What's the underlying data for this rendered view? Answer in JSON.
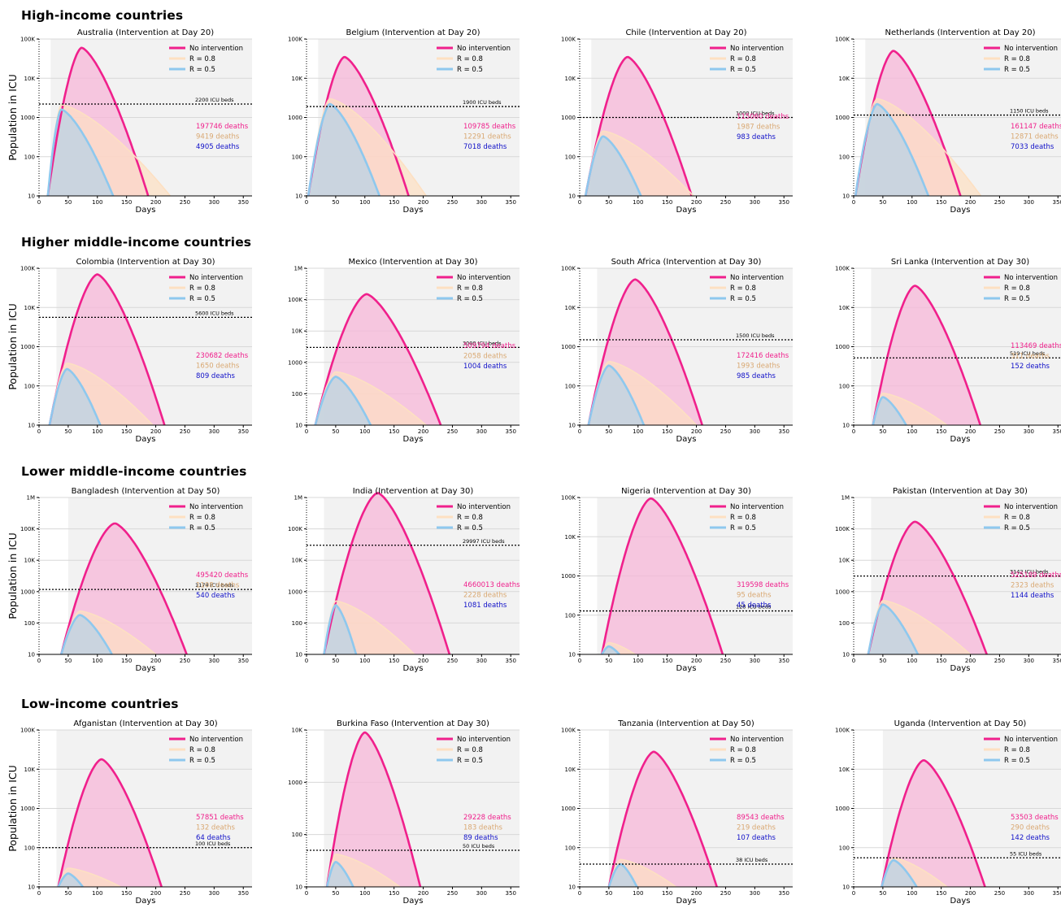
{
  "sections": [
    {
      "title": "High-income countries"
    },
    {
      "title": "Higher middle-income countries"
    },
    {
      "title": "Lower middle-income countries"
    },
    {
      "title": "Low-income countries"
    }
  ],
  "y_axis_label": "Population in ICU",
  "x_axis_label": "Days",
  "legend": {
    "no_intervention": "No intervention",
    "r08": "R = 0.8",
    "r05": "R = 0.5"
  },
  "colors": {
    "no_intervention": "#f0208c",
    "r08": "#fde0c2",
    "r05": "#8ec8ee",
    "deaths_08": "#d9a872",
    "deaths_05": "#1010c8",
    "shade": "#f2f2f2"
  },
  "chart_data": [
    {
      "type": "area",
      "title": "Australia (Intervention at Day 20)",
      "country": "Australia",
      "intervention_day": 20,
      "icu_beds_label": "2200 ICU beds",
      "icu_beds": 2200,
      "xlim": [
        0,
        365
      ],
      "ylim": [
        10,
        100000
      ],
      "yscale": "log",
      "y_ticks": [
        "10",
        "100",
        "1000",
        "10K",
        "100K"
      ],
      "x_ticks": [
        "0",
        "50",
        "100",
        "150",
        "200",
        "250",
        "300",
        "350"
      ],
      "deaths": [
        "197746 deaths",
        "9419 deaths",
        "4905 deaths"
      ],
      "series": [
        {
          "name": "No intervention",
          "start": 15,
          "peak_day": 73,
          "peak": 60000,
          "end": 187
        },
        {
          "name": "R = 0.8",
          "start": 15,
          "peak_day": 38,
          "peak": 2100,
          "end": 225
        },
        {
          "name": "R = 0.5",
          "start": 15,
          "peak_day": 38,
          "peak": 1600,
          "end": 127
        }
      ]
    },
    {
      "type": "area",
      "title": "Belgium (Intervention at Day 20)",
      "country": "Belgium",
      "intervention_day": 20,
      "icu_beds_label": "1900 ICU beds",
      "icu_beds": 1900,
      "xlim": [
        0,
        365
      ],
      "ylim": [
        10,
        100000
      ],
      "yscale": "log",
      "y_ticks": [
        "10",
        "100",
        "1000",
        "10K",
        "100K"
      ],
      "x_ticks": [
        "0",
        "50",
        "100",
        "150",
        "200",
        "250",
        "300",
        "350"
      ],
      "deaths": [
        "109785 deaths",
        "12291 deaths",
        "7018 deaths"
      ],
      "series": [
        {
          "name": "No intervention",
          "start": 3,
          "peak_day": 65,
          "peak": 35000,
          "end": 175
        },
        {
          "name": "R = 0.8",
          "start": 3,
          "peak_day": 40,
          "peak": 3000,
          "end": 205
        },
        {
          "name": "R = 0.5",
          "start": 3,
          "peak_day": 40,
          "peak": 2200,
          "end": 125
        }
      ]
    },
    {
      "type": "area",
      "title": "Chile (Intervention at Day 20)",
      "country": "Chile",
      "intervention_day": 20,
      "icu_beds_label": "1000 ICU beds",
      "icu_beds": 1000,
      "xlim": [
        0,
        365
      ],
      "ylim": [
        10,
        100000
      ],
      "yscale": "log",
      "y_ticks": [
        "10",
        "100",
        "1000",
        "10K",
        "100K"
      ],
      "x_ticks": [
        "0",
        "50",
        "100",
        "150",
        "200",
        "250",
        "300",
        "350"
      ],
      "deaths": [
        "115060 deaths",
        "1987 deaths",
        "983 deaths"
      ],
      "series": [
        {
          "name": "No intervention",
          "start": 10,
          "peak_day": 82,
          "peak": 35000,
          "end": 192
        },
        {
          "name": "R = 0.8",
          "start": 10,
          "peak_day": 40,
          "peak": 450,
          "end": 195
        },
        {
          "name": "R = 0.5",
          "start": 10,
          "peak_day": 40,
          "peak": 330,
          "end": 105
        }
      ]
    },
    {
      "type": "area",
      "title": "Netherlands (Intervention at Day 20)",
      "country": "Netherlands",
      "intervention_day": 20,
      "icu_beds_label": "1150 ICU beds",
      "icu_beds": 1150,
      "xlim": [
        0,
        365
      ],
      "ylim": [
        10,
        100000
      ],
      "yscale": "log",
      "y_ticks": [
        "10",
        "100",
        "1000",
        "10K",
        "100K"
      ],
      "x_ticks": [
        "0",
        "50",
        "100",
        "150",
        "200",
        "250",
        "300",
        "350"
      ],
      "deaths": [
        "161147 deaths",
        "12871 deaths",
        "7033 deaths"
      ],
      "series": [
        {
          "name": "No intervention",
          "start": 3,
          "peak_day": 68,
          "peak": 50000,
          "end": 183
        },
        {
          "name": "R = 0.8",
          "start": 3,
          "peak_day": 40,
          "peak": 3000,
          "end": 218
        },
        {
          "name": "R = 0.5",
          "start": 3,
          "peak_day": 40,
          "peak": 2200,
          "end": 128
        }
      ]
    },
    {
      "type": "area",
      "title": "Colombia (Intervention at Day 30)",
      "country": "Colombia",
      "intervention_day": 30,
      "icu_beds_label": "5600 ICU beds",
      "icu_beds": 5600,
      "xlim": [
        0,
        365
      ],
      "ylim": [
        10,
        100000
      ],
      "yscale": "log",
      "y_ticks": [
        "10",
        "100",
        "1000",
        "10K",
        "100K"
      ],
      "x_ticks": [
        "0",
        "50",
        "100",
        "150",
        "200",
        "250",
        "300",
        "350"
      ],
      "deaths": [
        "230682 deaths",
        "1650 deaths",
        "809 deaths"
      ],
      "series": [
        {
          "name": "No intervention",
          "start": 18,
          "peak_day": 100,
          "peak": 70000,
          "end": 215
        },
        {
          "name": "R = 0.8",
          "start": 18,
          "peak_day": 48,
          "peak": 380,
          "end": 195
        },
        {
          "name": "R = 0.5",
          "start": 18,
          "peak_day": 48,
          "peak": 270,
          "end": 105
        }
      ]
    },
    {
      "type": "area",
      "title": "Mexico (Intervention at Day 30)",
      "country": "Mexico",
      "intervention_day": 30,
      "icu_beds_label": "3000 ICU beds",
      "icu_beds": 3000,
      "xlim": [
        0,
        365
      ],
      "ylim": [
        10,
        1000000
      ],
      "yscale": "log",
      "y_ticks": [
        "10",
        "100",
        "1000",
        "10K",
        "100K",
        "1M"
      ],
      "x_ticks": [
        "0",
        "50",
        "100",
        "150",
        "200",
        "250",
        "300",
        "350"
      ],
      "deaths": [
        "509794 deaths",
        "2058 deaths",
        "1004 deaths"
      ],
      "series": [
        {
          "name": "No intervention",
          "start": 15,
          "peak_day": 103,
          "peak": 150000,
          "end": 230
        },
        {
          "name": "R = 0.8",
          "start": 15,
          "peak_day": 50,
          "peak": 500,
          "end": 205
        },
        {
          "name": "R = 0.5",
          "start": 15,
          "peak_day": 50,
          "peak": 350,
          "end": 110
        }
      ]
    },
    {
      "type": "area",
      "title": "South Africa (Intervention at Day 30)",
      "country": "South Africa",
      "intervention_day": 30,
      "icu_beds_label": "1500 ICU beds",
      "icu_beds": 1500,
      "xlim": [
        0,
        365
      ],
      "ylim": [
        10,
        100000
      ],
      "yscale": "log",
      "y_ticks": [
        "10",
        "100",
        "1000",
        "10K",
        "100K"
      ],
      "x_ticks": [
        "0",
        "50",
        "100",
        "150",
        "200",
        "250",
        "300",
        "350"
      ],
      "deaths": [
        "172416 deaths",
        "1993 deaths",
        "985 deaths"
      ],
      "series": [
        {
          "name": "No intervention",
          "start": 15,
          "peak_day": 95,
          "peak": 52000,
          "end": 210
        },
        {
          "name": "R = 0.8",
          "start": 15,
          "peak_day": 50,
          "peak": 420,
          "end": 200
        },
        {
          "name": "R = 0.5",
          "start": 15,
          "peak_day": 50,
          "peak": 330,
          "end": 110
        }
      ]
    },
    {
      "type": "area",
      "title": "Sri Lanka (Intervention at Day 30)",
      "country": "Sri Lanka",
      "intervention_day": 30,
      "icu_beds_label": "519 ICU beds",
      "icu_beds": 519,
      "xlim": [
        0,
        365
      ],
      "ylim": [
        10,
        100000
      ],
      "yscale": "log",
      "y_ticks": [
        "10",
        "100",
        "1000",
        "10K",
        "100K"
      ],
      "x_ticks": [
        "0",
        "50",
        "100",
        "150",
        "200",
        "250",
        "300",
        "350"
      ],
      "deaths": [
        "113469 deaths",
        "311 deaths",
        "152 deaths"
      ],
      "series": [
        {
          "name": "No intervention",
          "start": 33,
          "peak_day": 105,
          "peak": 36000,
          "end": 217
        },
        {
          "name": "R = 0.8",
          "start": 33,
          "peak_day": 50,
          "peak": 65,
          "end": 160
        },
        {
          "name": "R = 0.5",
          "start": 33,
          "peak_day": 50,
          "peak": 52,
          "end": 90
        }
      ]
    },
    {
      "type": "area",
      "title": "Bangladesh (Intervention at Day 50)",
      "country": "Bangladesh",
      "intervention_day": 50,
      "icu_beds_label": "1174 ICU beds",
      "icu_beds": 1174,
      "xlim": [
        0,
        365
      ],
      "ylim": [
        10,
        1000000
      ],
      "yscale": "log",
      "y_ticks": [
        "10",
        "100",
        "1000",
        "10K",
        "100K",
        "1M"
      ],
      "x_ticks": [
        "0",
        "50",
        "100",
        "150",
        "200",
        "250",
        "300",
        "350"
      ],
      "deaths": [
        "495420 deaths",
        "1108 deaths",
        "540 deaths"
      ],
      "series": [
        {
          "name": "No intervention",
          "start": 38,
          "peak_day": 130,
          "peak": 150000,
          "end": 253
        },
        {
          "name": "R = 0.8",
          "start": 38,
          "peak_day": 70,
          "peak": 240,
          "end": 200
        },
        {
          "name": "R = 0.5",
          "start": 38,
          "peak_day": 70,
          "peak": 180,
          "end": 125
        }
      ]
    },
    {
      "type": "area",
      "title": "India (Intervention at Day 30)",
      "country": "India",
      "intervention_day": 30,
      "icu_beds_label": "29997 ICU beds",
      "icu_beds": 29997,
      "xlim": [
        0,
        365
      ],
      "ylim": [
        10,
        1000000
      ],
      "yscale": "log",
      "y_ticks": [
        "10",
        "100",
        "1000",
        "10K",
        "100K",
        "1M"
      ],
      "x_ticks": [
        "0",
        "50",
        "100",
        "150",
        "200",
        "250",
        "300",
        "350"
      ],
      "deaths": [
        "4660013 deaths",
        "2228 deaths",
        "1081 deaths"
      ],
      "series": [
        {
          "name": "No intervention",
          "start": 30,
          "peak_day": 122,
          "peak": 1400000,
          "end": 245
        },
        {
          "name": "R = 0.8",
          "start": 30,
          "peak_day": 50,
          "peak": 500,
          "end": 185
        },
        {
          "name": "R = 0.5",
          "start": 30,
          "peak_day": 50,
          "peak": 370,
          "end": 85
        }
      ]
    },
    {
      "type": "area",
      "title": "Nigeria (Intervention at Day 30)",
      "country": "Nigeria",
      "intervention_day": 30,
      "icu_beds_label": "128 ICU beds",
      "icu_beds": 128,
      "xlim": [
        0,
        365
      ],
      "ylim": [
        10,
        100000
      ],
      "yscale": "log",
      "y_ticks": [
        "10",
        "100",
        "1000",
        "10K",
        "100K"
      ],
      "x_ticks": [
        "0",
        "50",
        "100",
        "150",
        "200",
        "250",
        "300",
        "350"
      ],
      "deaths": [
        "319598 deaths",
        "95 deaths",
        "45 deaths"
      ],
      "series": [
        {
          "name": "No intervention",
          "start": 38,
          "peak_day": 122,
          "peak": 95000,
          "end": 245
        },
        {
          "name": "R = 0.8",
          "start": 38,
          "peak_day": 50,
          "peak": 20,
          "end": 95
        },
        {
          "name": "R = 0.5",
          "start": 38,
          "peak_day": 50,
          "peak": 16,
          "end": 68
        }
      ]
    },
    {
      "type": "area",
      "title": "Pakistan (Intervention at Day 30)",
      "country": "Pakistan",
      "intervention_day": 30,
      "icu_beds_label": "3142 ICU beds",
      "icu_beds": 3142,
      "xlim": [
        0,
        365
      ],
      "ylim": [
        10,
        1000000
      ],
      "yscale": "log",
      "y_ticks": [
        "10",
        "100",
        "1000",
        "10K",
        "100K",
        "1M"
      ],
      "x_ticks": [
        "0",
        "50",
        "100",
        "150",
        "200",
        "250",
        "300",
        "350"
      ],
      "deaths": [
        "525189 deaths",
        "2323 deaths",
        "1144 deaths"
      ],
      "series": [
        {
          "name": "No intervention",
          "start": 25,
          "peak_day": 105,
          "peak": 170000,
          "end": 228
        },
        {
          "name": "R = 0.8",
          "start": 25,
          "peak_day": 50,
          "peak": 520,
          "end": 200
        },
        {
          "name": "R = 0.5",
          "start": 25,
          "peak_day": 50,
          "peak": 390,
          "end": 110
        }
      ]
    },
    {
      "type": "area",
      "title": "Afganistan (Intervention at Day 30)",
      "country": "Afganistan",
      "intervention_day": 30,
      "icu_beds_label": "100 ICU beds",
      "icu_beds": 100,
      "xlim": [
        0,
        365
      ],
      "ylim": [
        10,
        100000
      ],
      "yscale": "log",
      "y_ticks": [
        "10",
        "100",
        "1000",
        "10K",
        "100K"
      ],
      "x_ticks": [
        "0",
        "50",
        "100",
        "150",
        "200",
        "250",
        "300",
        "350"
      ],
      "deaths": [
        "57851 deaths",
        "132 deaths",
        "64 deaths"
      ],
      "series": [
        {
          "name": "No intervention",
          "start": 33,
          "peak_day": 107,
          "peak": 18000,
          "end": 210
        },
        {
          "name": "R = 0.8",
          "start": 33,
          "peak_day": 50,
          "peak": 30,
          "end": 140
        },
        {
          "name": "R = 0.5",
          "start": 33,
          "peak_day": 50,
          "peak": 22,
          "end": 75
        }
      ]
    },
    {
      "type": "area",
      "title": "Burkina Faso (Intervention at Day 30)",
      "country": "Burkina Faso",
      "intervention_day": 30,
      "icu_beds_label": "50 ICU beds",
      "icu_beds": 50,
      "xlim": [
        0,
        365
      ],
      "ylim": [
        10,
        10000
      ],
      "yscale": "log",
      "y_ticks": [
        "10",
        "100",
        "1000",
        "10K"
      ],
      "x_ticks": [
        "0",
        "50",
        "100",
        "150",
        "200",
        "250",
        "300",
        "350"
      ],
      "deaths": [
        "29228 deaths",
        "183 deaths",
        "89 deaths"
      ],
      "series": [
        {
          "name": "No intervention",
          "start": 35,
          "peak_day": 100,
          "peak": 9000,
          "end": 195
        },
        {
          "name": "R = 0.8",
          "start": 35,
          "peak_day": 50,
          "peak": 42,
          "end": 160
        },
        {
          "name": "R = 0.5",
          "start": 35,
          "peak_day": 50,
          "peak": 30,
          "end": 80
        }
      ]
    },
    {
      "type": "area",
      "title": "Tanzania (Intervention at Day 50)",
      "country": "Tanzania",
      "intervention_day": 50,
      "icu_beds_label": "38 ICU beds",
      "icu_beds": 38,
      "xlim": [
        0,
        365
      ],
      "ylim": [
        10,
        100000
      ],
      "yscale": "log",
      "y_ticks": [
        "10",
        "100",
        "1000",
        "10K",
        "100K"
      ],
      "x_ticks": [
        "0",
        "50",
        "100",
        "150",
        "200",
        "250",
        "300",
        "350"
      ],
      "deaths": [
        "89543 deaths",
        "219 deaths",
        "107 deaths"
      ],
      "series": [
        {
          "name": "No intervention",
          "start": 50,
          "peak_day": 127,
          "peak": 28000,
          "end": 235
        },
        {
          "name": "R = 0.8",
          "start": 50,
          "peak_day": 70,
          "peak": 50,
          "end": 165
        },
        {
          "name": "R = 0.5",
          "start": 50,
          "peak_day": 70,
          "peak": 38,
          "end": 98
        }
      ]
    },
    {
      "type": "area",
      "title": "Uganda (Intervention at Day 50)",
      "country": "Uganda",
      "intervention_day": 50,
      "icu_beds_label": "55 ICU beds",
      "icu_beds": 55,
      "xlim": [
        0,
        365
      ],
      "ylim": [
        10,
        100000
      ],
      "yscale": "log",
      "y_ticks": [
        "10",
        "100",
        "1000",
        "10K",
        "100K"
      ],
      "x_ticks": [
        "0",
        "50",
        "100",
        "150",
        "200",
        "250",
        "300",
        "350"
      ],
      "deaths": [
        "53503 deaths",
        "290 deaths",
        "142 deaths"
      ],
      "series": [
        {
          "name": "No intervention",
          "start": 48,
          "peak_day": 120,
          "peak": 17000,
          "end": 225
        },
        {
          "name": "R = 0.8",
          "start": 48,
          "peak_day": 68,
          "peak": 55,
          "end": 160
        },
        {
          "name": "R = 0.5",
          "start": 48,
          "peak_day": 68,
          "peak": 48,
          "end": 108
        }
      ]
    }
  ]
}
